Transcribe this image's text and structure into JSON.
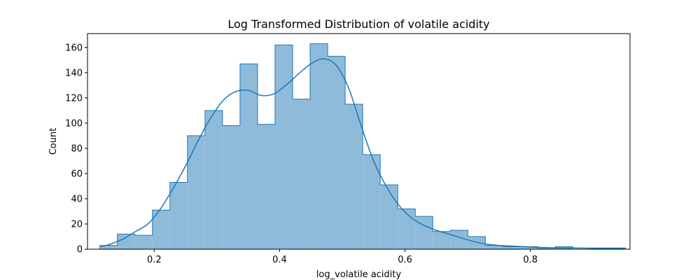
{
  "chart_data": {
    "type": "histogram",
    "title": "Log Transformed Distribution of volatile acidity",
    "xlabel": "log_volatile acidity",
    "ylabel": "Count",
    "xlim": [
      0.0936,
      0.9589
    ],
    "ylim": [
      0,
      171
    ],
    "x_ticks": [
      0.2,
      0.4,
      0.6,
      0.8
    ],
    "x_tick_labels": [
      "0.2",
      "0.4",
      "0.6",
      "0.8"
    ],
    "y_ticks": [
      0,
      20,
      40,
      60,
      80,
      100,
      120,
      140,
      160
    ],
    "y_tick_labels": [
      "0",
      "20",
      "40",
      "60",
      "80",
      "100",
      "120",
      "140",
      "160"
    ],
    "grid": false,
    "bins": {
      "start": 0.1133,
      "width": 0.02795,
      "counts": [
        3,
        12,
        11,
        31,
        53,
        90,
        110,
        98,
        147,
        99,
        162,
        119,
        163,
        153,
        115,
        75,
        51,
        32,
        26,
        14,
        15,
        10,
        3,
        2,
        2,
        1,
        2,
        0,
        1,
        1
      ]
    },
    "kde": {
      "x": [
        0.115,
        0.13,
        0.15,
        0.17,
        0.19,
        0.21,
        0.23,
        0.25,
        0.27,
        0.29,
        0.31,
        0.33,
        0.35,
        0.37,
        0.39,
        0.41,
        0.43,
        0.45,
        0.47,
        0.49,
        0.51,
        0.53,
        0.55,
        0.57,
        0.59,
        0.61,
        0.63,
        0.65,
        0.67,
        0.69,
        0.71,
        0.73,
        0.75,
        0.77,
        0.79,
        0.81,
        0.83,
        0.85,
        0.87,
        0.89,
        0.91,
        0.93,
        0.95
      ],
      "y": [
        2,
        4,
        8,
        14,
        20,
        32,
        48,
        66,
        86,
        104,
        118,
        125,
        126,
        122,
        123,
        130,
        139,
        147,
        151,
        146,
        128,
        98,
        70,
        50,
        35,
        25,
        19,
        15,
        12,
        9,
        6,
        4,
        3,
        2.5,
        2,
        1.5,
        1.2,
        1,
        1,
        0.8,
        0.6,
        0.5,
        0.4
      ]
    },
    "colors": {
      "bar_fill": "#8fbbdb",
      "bar_edge": "#1f77b4",
      "kde_line": "#1f77b4"
    }
  }
}
